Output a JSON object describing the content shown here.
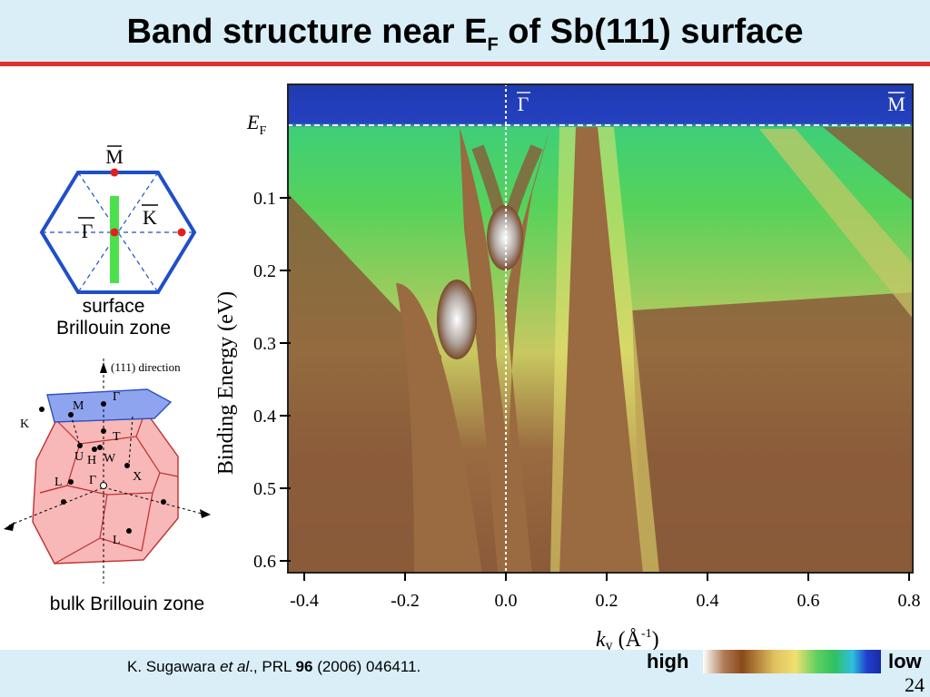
{
  "slide": {
    "title_main": "Band structure near E",
    "title_sub": "F",
    "title_tail": " of Sb(111) surface",
    "page_number": "24"
  },
  "citation": {
    "author": "K. Sugawara ",
    "etal": "et al",
    "after_etal": ".,    PRL ",
    "volume": "96",
    "rest": " (2006) 046411."
  },
  "surface_bz": {
    "label_line1": "surface",
    "label_line2": "Brillouin zone",
    "point_M": "M",
    "point_K": "K",
    "point_Gamma": "Γ"
  },
  "bulk_bz": {
    "label": "bulk Brillouin zone",
    "direction": "(111) direction",
    "points": [
      "M",
      "Γ",
      "K",
      "T",
      "U",
      "H",
      "W",
      "L",
      "Γ",
      "X",
      "L"
    ]
  },
  "arpes": {
    "ef_label": "E",
    "ef_sub": "F",
    "gamma_label": "Γ",
    "m_label": "M",
    "y_axis_label": "Binding Energy (eV)",
    "x_axis_label_k": "k",
    "x_axis_label_y": "y",
    "x_axis_label_unit": " (Å",
    "x_axis_label_exp": "-1",
    "x_axis_label_close": ")",
    "y_ticks": [
      "0.1",
      "0.2",
      "0.3",
      "0.4",
      "0.5",
      "0.6"
    ],
    "x_ticks": [
      "-0.4",
      "-0.2",
      "0.0",
      "0.2",
      "0.4",
      "0.6",
      "0.8"
    ],
    "colorbar_high": "high",
    "colorbar_low": "low"
  }
}
